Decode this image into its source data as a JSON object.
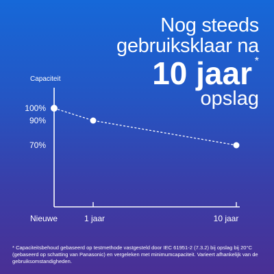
{
  "headline": {
    "line1": "Nog steeds",
    "line2": "gebruiksklaar na",
    "line3": "10 jaar",
    "asterisk": "*",
    "line4": "opslag"
  },
  "chart_data": {
    "type": "line",
    "ylabel": "Capaciteit",
    "categories": [
      "Nieuwe",
      "1 jaar",
      "10 jaar"
    ],
    "x": [
      0,
      1,
      10
    ],
    "values": [
      100,
      90,
      70
    ],
    "y_tick_labels": [
      "100%",
      "90%",
      "70%"
    ],
    "line_style": "dashed",
    "line_color": "#ffffff",
    "grid": false,
    "legend": "none"
  },
  "footnote": "* Capaciteitsbehoud gebaseerd op testmethode vastgesteld door IEC 61951-2 (7.3.2) bij opslag bij 20°C (gebaseerd op schatting van Panasonic) en vergeleken met minimumcapaciteit. Varieert afhankelijk van de gebruiksomstandigheden."
}
